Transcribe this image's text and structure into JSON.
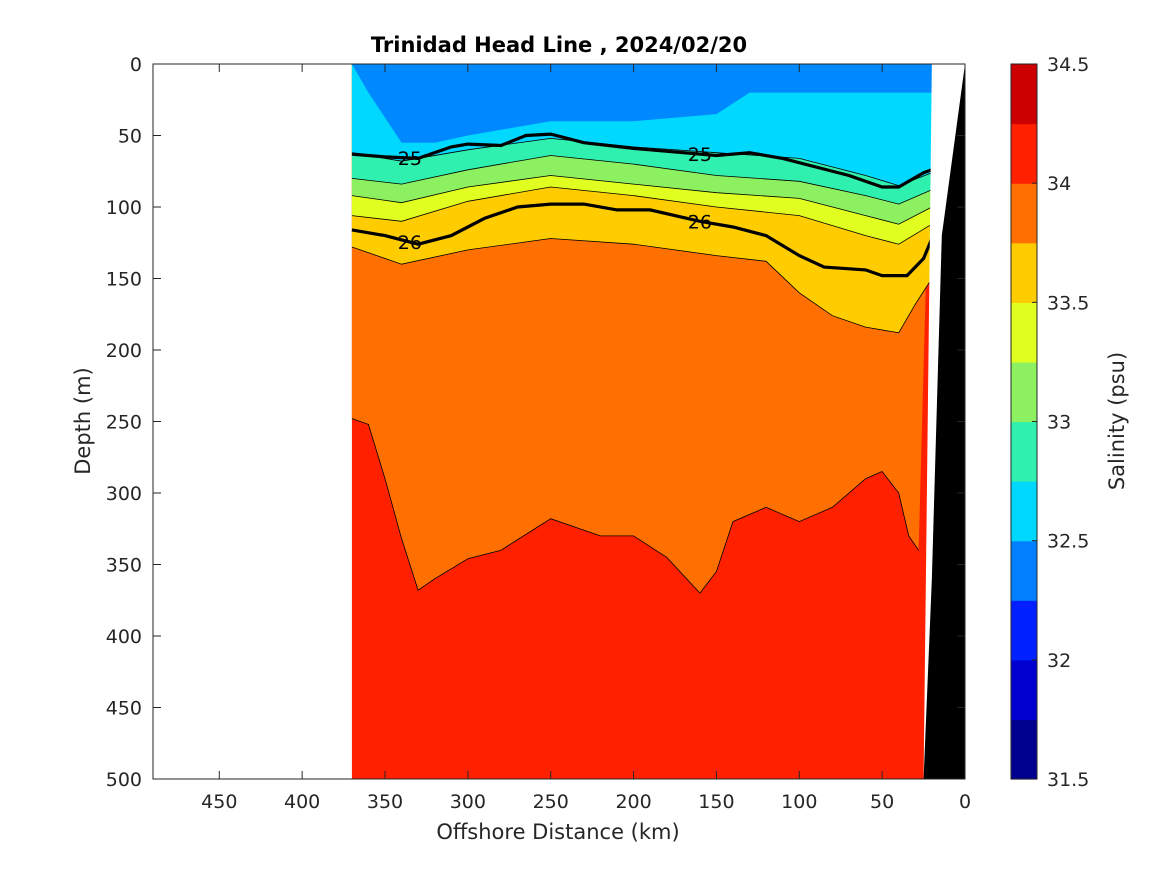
{
  "chart_data": {
    "type": "heatmap",
    "title": "Trinidad Head Line , 2024/02/20",
    "xlabel": "Offshore Distance (km)",
    "ylabel": "Depth (m)",
    "xlim": [
      490,
      0
    ],
    "ylim": [
      0,
      500
    ],
    "x_reversed": true,
    "y_reversed": true,
    "x_ticks": [
      450,
      400,
      350,
      300,
      250,
      200,
      150,
      100,
      50,
      0
    ],
    "y_ticks": [
      0,
      50,
      100,
      150,
      200,
      250,
      300,
      350,
      400,
      450,
      500
    ],
    "colorbar": {
      "label": "Salinity (psu)",
      "range": [
        31.5,
        34.5
      ],
      "tick_values": [
        31.5,
        32,
        32.5,
        33,
        33.5,
        34,
        34.5
      ],
      "tick_labels": [
        "31.5",
        "32",
        "32.5",
        "33",
        "33.5",
        "34",
        "34.5"
      ],
      "level_colors": [
        "#00008f",
        "#0000d0",
        "#0020ff",
        "#0080ff",
        "#00d8ff",
        "#30f0b0",
        "#8cf060",
        "#e0ff20",
        "#ffcc00",
        "#ff7000",
        "#ff2000",
        "#cc0000"
      ]
    },
    "section_extent_km": [
      370,
      20
    ],
    "filled_bands": [
      {
        "level": 32.25,
        "color": "#0088ff",
        "top_depth": [
          [
            370,
            0
          ],
          [
            20,
            0
          ]
        ],
        "bottom_depth": [
          [
            360,
            20
          ],
          [
            340,
            55
          ],
          [
            320,
            55
          ],
          [
            300,
            50
          ],
          [
            250,
            40
          ],
          [
            200,
            40
          ],
          [
            150,
            35
          ],
          [
            130,
            20
          ],
          [
            100,
            20
          ],
          [
            60,
            20
          ],
          [
            20,
            20
          ]
        ]
      },
      {
        "level": 32.75,
        "color": "#00d8ff",
        "top_depth": [
          [
            370,
            0
          ],
          [
            20,
            0
          ]
        ],
        "bottom_depth": [
          [
            370,
            62
          ],
          [
            340,
            68
          ],
          [
            300,
            60
          ],
          [
            250,
            52
          ],
          [
            200,
            58
          ],
          [
            150,
            62
          ],
          [
            100,
            66
          ],
          [
            60,
            78
          ],
          [
            40,
            85
          ],
          [
            20,
            76
          ]
        ]
      },
      {
        "level": 33.0,
        "color": "#30f0b0",
        "bottom_depth": [
          [
            370,
            80
          ],
          [
            340,
            84
          ],
          [
            300,
            74
          ],
          [
            250,
            64
          ],
          [
            200,
            70
          ],
          [
            150,
            78
          ],
          [
            100,
            82
          ],
          [
            60,
            92
          ],
          [
            40,
            98
          ],
          [
            20,
            88
          ]
        ]
      },
      {
        "level": 33.25,
        "color": "#8cf060",
        "bottom_depth": [
          [
            370,
            92
          ],
          [
            340,
            97
          ],
          [
            300,
            86
          ],
          [
            250,
            78
          ],
          [
            200,
            84
          ],
          [
            150,
            90
          ],
          [
            100,
            94
          ],
          [
            60,
            106
          ],
          [
            40,
            112
          ],
          [
            20,
            100
          ]
        ]
      },
      {
        "level": 33.5,
        "color": "#e0ff20",
        "bottom_depth": [
          [
            370,
            106
          ],
          [
            340,
            110
          ],
          [
            300,
            96
          ],
          [
            250,
            86
          ],
          [
            200,
            92
          ],
          [
            150,
            100
          ],
          [
            100,
            106
          ],
          [
            60,
            120
          ],
          [
            40,
            126
          ],
          [
            20,
            112
          ]
        ]
      },
      {
        "level": 33.75,
        "color": "#ffcc00",
        "bottom_depth": [
          [
            370,
            128
          ],
          [
            340,
            140
          ],
          [
            300,
            130
          ],
          [
            250,
            122
          ],
          [
            200,
            126
          ],
          [
            150,
            134
          ],
          [
            120,
            138
          ],
          [
            100,
            160
          ],
          [
            80,
            176
          ],
          [
            60,
            184
          ],
          [
            40,
            188
          ],
          [
            30,
            168
          ],
          [
            20,
            150
          ]
        ]
      },
      {
        "level": 34.0,
        "color": "#ff7000",
        "bottom_depth": [
          [
            370,
            248
          ],
          [
            360,
            252
          ],
          [
            350,
            290
          ],
          [
            340,
            332
          ],
          [
            330,
            368
          ],
          [
            320,
            360
          ],
          [
            300,
            346
          ],
          [
            280,
            340
          ],
          [
            250,
            318
          ],
          [
            220,
            330
          ],
          [
            200,
            330
          ],
          [
            180,
            345
          ],
          [
            160,
            370
          ],
          [
            150,
            355
          ],
          [
            140,
            320
          ],
          [
            120,
            310
          ],
          [
            100,
            320
          ],
          [
            80,
            310
          ],
          [
            60,
            290
          ],
          [
            50,
            285
          ],
          [
            40,
            300
          ],
          [
            34,
            330
          ],
          [
            28,
            340
          ]
        ]
      },
      {
        "level": 34.25,
        "color": "#ff2000",
        "bottom_depth": [
          [
            370,
            500
          ],
          [
            20,
            500
          ]
        ]
      }
    ],
    "contour_lines": [
      {
        "label": "25",
        "label_positions_km": [
          335,
          160
        ],
        "bold": true,
        "points": [
          [
            370,
            63
          ],
          [
            350,
            65
          ],
          [
            330,
            66
          ],
          [
            310,
            58
          ],
          [
            300,
            56
          ],
          [
            280,
            57
          ],
          [
            265,
            50
          ],
          [
            250,
            49
          ],
          [
            230,
            55
          ],
          [
            200,
            59
          ],
          [
            170,
            62
          ],
          [
            150,
            64
          ],
          [
            130,
            62
          ],
          [
            110,
            66
          ],
          [
            90,
            72
          ],
          [
            70,
            78
          ],
          [
            50,
            86
          ],
          [
            40,
            86
          ],
          [
            25,
            76
          ],
          [
            20,
            74
          ]
        ]
      },
      {
        "label": "26",
        "label_positions_km": [
          335,
          160
        ],
        "bold": true,
        "points": [
          [
            370,
            116
          ],
          [
            350,
            120
          ],
          [
            330,
            126
          ],
          [
            310,
            120
          ],
          [
            290,
            108
          ],
          [
            270,
            100
          ],
          [
            250,
            98
          ],
          [
            230,
            98
          ],
          [
            210,
            102
          ],
          [
            190,
            102
          ],
          [
            160,
            110
          ],
          [
            140,
            114
          ],
          [
            120,
            120
          ],
          [
            100,
            134
          ],
          [
            85,
            142
          ],
          [
            60,
            144
          ],
          [
            50,
            148
          ],
          [
            35,
            148
          ],
          [
            25,
            136
          ],
          [
            20,
            122
          ]
        ]
      }
    ],
    "topography_color": "#000000"
  }
}
